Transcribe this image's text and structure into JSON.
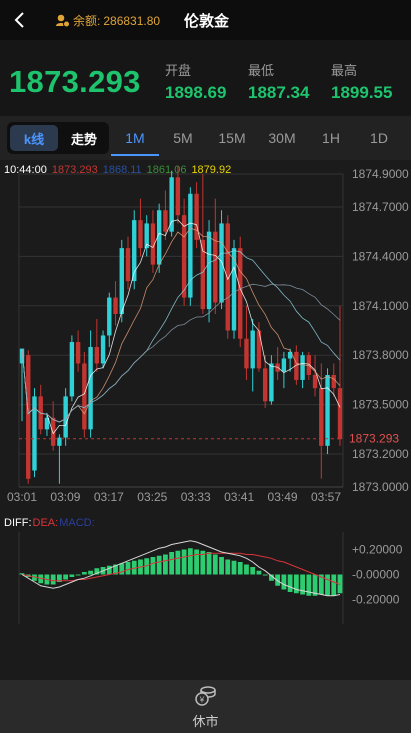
{
  "header": {
    "balance_label": "余额:",
    "balance_value": "286831.80",
    "title": "伦敦金",
    "icons": {
      "back": "chevron-left-icon",
      "balance": "user-coin-icon"
    }
  },
  "quote": {
    "price": "1873.293",
    "open_label": "开盘",
    "open_value": "1898.69",
    "low_label": "最低",
    "low_value": "1887.34",
    "high_label": "最高",
    "high_value": "1899.55"
  },
  "tabs": {
    "kline_label": "k线",
    "trend_label": "走势",
    "timeframes": [
      "1M",
      "5M",
      "15M",
      "30M",
      "1H",
      "1D"
    ],
    "active_timeframe": "1M"
  },
  "legend": {
    "time": "10:44:00",
    "ma_values": [
      "1873.293",
      "1868.11",
      "1861.06",
      "1879.92"
    ]
  },
  "chart_data": [
    {
      "type": "candlestick",
      "x": [
        "03:01",
        "03:09",
        "03:17",
        "03:25",
        "03:33",
        "03:41",
        "03:49",
        "03:57"
      ],
      "y_ticks": [
        "1874.9000",
        "1874.7000",
        "1874.4000",
        "1874.1000",
        "1873.8000",
        "1873.5000",
        "1873.2000",
        "1873.0000"
      ],
      "ylim": [
        1873.0,
        1874.9
      ],
      "current_price": "1873.293",
      "up_color": "#2fd1d6",
      "down_color": "#c23531",
      "ma_colors": [
        "#ffffff",
        "#e7a07a",
        "#8fd3e0",
        "#8ea0b0"
      ],
      "candles": [
        [
          1873.75,
          1873.84,
          1873.4,
          1873.84
        ],
        [
          1873.8,
          1873.83,
          1873.02,
          1873.05
        ],
        [
          1873.1,
          1873.6,
          1873.06,
          1873.55
        ],
        [
          1873.55,
          1873.62,
          1873.32,
          1873.35
        ],
        [
          1873.35,
          1873.45,
          1873.31,
          1873.42
        ],
        [
          1873.42,
          1873.52,
          1873.22,
          1873.25
        ],
        [
          1873.25,
          1873.32,
          1873.02,
          1873.3
        ],
        [
          1873.3,
          1873.6,
          1873.25,
          1873.55
        ],
        [
          1873.55,
          1873.92,
          1873.52,
          1873.88
        ],
        [
          1873.88,
          1873.95,
          1873.7,
          1873.75
        ],
        [
          1873.75,
          1873.82,
          1873.3,
          1873.35
        ],
        [
          1873.35,
          1873.95,
          1873.3,
          1873.85
        ],
        [
          1873.85,
          1874.02,
          1873.7,
          1873.75
        ],
        [
          1873.75,
          1873.95,
          1873.72,
          1873.92
        ],
        [
          1873.92,
          1874.18,
          1873.85,
          1874.15
        ],
        [
          1874.15,
          1874.25,
          1873.98,
          1874.05
        ],
        [
          1874.05,
          1874.5,
          1874.0,
          1874.45
        ],
        [
          1874.45,
          1874.52,
          1874.2,
          1874.25
        ],
        [
          1874.25,
          1874.68,
          1874.2,
          1874.62
        ],
        [
          1874.62,
          1874.75,
          1874.4,
          1874.45
        ],
        [
          1874.45,
          1874.65,
          1874.4,
          1874.6
        ],
        [
          1874.6,
          1874.68,
          1874.3,
          1874.35
        ],
        [
          1874.35,
          1874.72,
          1874.3,
          1874.68
        ],
        [
          1874.68,
          1874.8,
          1874.5,
          1874.55
        ],
        [
          1874.55,
          1874.92,
          1874.52,
          1874.88
        ],
        [
          1874.88,
          1874.95,
          1874.6,
          1874.65
        ],
        [
          1874.65,
          1874.75,
          1874.1,
          1874.15
        ],
        [
          1874.15,
          1874.82,
          1874.1,
          1874.78
        ],
        [
          1874.78,
          1874.85,
          1874.45,
          1874.5
        ],
        [
          1874.5,
          1874.9,
          1874.05,
          1874.08
        ],
        [
          1874.08,
          1874.62,
          1874.0,
          1874.55
        ],
        [
          1874.55,
          1874.75,
          1874.05,
          1874.12
        ],
        [
          1874.12,
          1874.68,
          1874.08,
          1874.6
        ],
        [
          1874.6,
          1874.65,
          1873.9,
          1873.95
        ],
        [
          1873.95,
          1874.5,
          1873.9,
          1874.45
        ],
        [
          1874.45,
          1874.52,
          1873.85,
          1873.9
        ],
        [
          1873.9,
          1874.1,
          1873.65,
          1873.72
        ],
        [
          1873.72,
          1874.02,
          1873.58,
          1873.95
        ],
        [
          1873.95,
          1874.0,
          1873.7,
          1873.72
        ],
        [
          1873.72,
          1873.8,
          1873.48,
          1873.52
        ],
        [
          1873.52,
          1873.8,
          1873.5,
          1873.75
        ],
        [
          1873.75,
          1873.85,
          1873.65,
          1873.7
        ],
        [
          1873.7,
          1873.82,
          1873.6,
          1873.78
        ],
        [
          1873.78,
          1873.84,
          1873.7,
          1873.82
        ],
        [
          1873.82,
          1873.86,
          1873.62,
          1873.65
        ],
        [
          1873.65,
          1873.82,
          1873.6,
          1873.8
        ],
        [
          1873.8,
          1873.82,
          1873.65,
          1873.68
        ],
        [
          1873.68,
          1873.8,
          1873.55,
          1873.6
        ],
        [
          1873.6,
          1873.75,
          1873.05,
          1873.25
        ],
        [
          1873.25,
          1873.72,
          1873.2,
          1873.68
        ],
        [
          1873.68,
          1873.75,
          1873.55,
          1873.6
        ],
        [
          1873.6,
          1874.1,
          1873.25,
          1873.29
        ]
      ]
    },
    {
      "type": "macd",
      "y_ticks": [
        "+0.20000",
        "-0.00000",
        "-0.20000"
      ],
      "ylim": [
        -0.3,
        0.3
      ],
      "diff_color": "#d7d7d7",
      "dea_color": "#d9343a",
      "macd_color": "#2ecc71",
      "histogram": [
        0.01,
        -0.02,
        -0.05,
        -0.07,
        -0.08,
        -0.08,
        -0.06,
        -0.04,
        -0.02,
        0.0,
        0.02,
        0.03,
        0.05,
        0.06,
        0.07,
        0.08,
        0.09,
        0.1,
        0.11,
        0.12,
        0.13,
        0.14,
        0.15,
        0.16,
        0.18,
        0.19,
        0.2,
        0.21,
        0.2,
        0.19,
        0.18,
        0.16,
        0.14,
        0.12,
        0.11,
        0.1,
        0.08,
        0.06,
        0.03,
        0.0,
        -0.05,
        -0.09,
        -0.12,
        -0.14,
        -0.15,
        -0.16,
        -0.17,
        -0.17,
        -0.16,
        -0.17,
        -0.17,
        -0.15
      ],
      "diff": [
        0.0,
        -0.03,
        -0.06,
        -0.09,
        -0.1,
        -0.11,
        -0.1,
        -0.08,
        -0.06,
        -0.04,
        -0.03,
        -0.01,
        0.01,
        0.03,
        0.05,
        0.07,
        0.09,
        0.11,
        0.13,
        0.15,
        0.17,
        0.19,
        0.21,
        0.22,
        0.24,
        0.25,
        0.26,
        0.27,
        0.26,
        0.24,
        0.22,
        0.2,
        0.18,
        0.17,
        0.16,
        0.15,
        0.13,
        0.1,
        0.06,
        0.03,
        -0.01,
        -0.05,
        -0.08,
        -0.1,
        -0.12,
        -0.13,
        -0.14,
        -0.15,
        -0.16,
        -0.17,
        -0.17,
        -0.16
      ],
      "dea": [
        0.0,
        -0.01,
        -0.02,
        -0.03,
        -0.04,
        -0.05,
        -0.05,
        -0.05,
        -0.05,
        -0.04,
        -0.04,
        -0.03,
        -0.02,
        -0.01,
        0.0,
        0.01,
        0.02,
        0.04,
        0.05,
        0.06,
        0.07,
        0.09,
        0.1,
        0.11,
        0.12,
        0.13,
        0.14,
        0.15,
        0.16,
        0.16,
        0.17,
        0.17,
        0.17,
        0.17,
        0.17,
        0.17,
        0.16,
        0.16,
        0.15,
        0.14,
        0.13,
        0.11,
        0.1,
        0.08,
        0.06,
        0.04,
        0.02,
        0.0,
        -0.02,
        -0.04,
        -0.06,
        -0.08
      ]
    }
  ],
  "macd_legend": {
    "diff": "DIFF:",
    "dea": "DEA:",
    "macd": "MACD:"
  },
  "footer": {
    "label": "休市",
    "icon": "coins-icon"
  }
}
